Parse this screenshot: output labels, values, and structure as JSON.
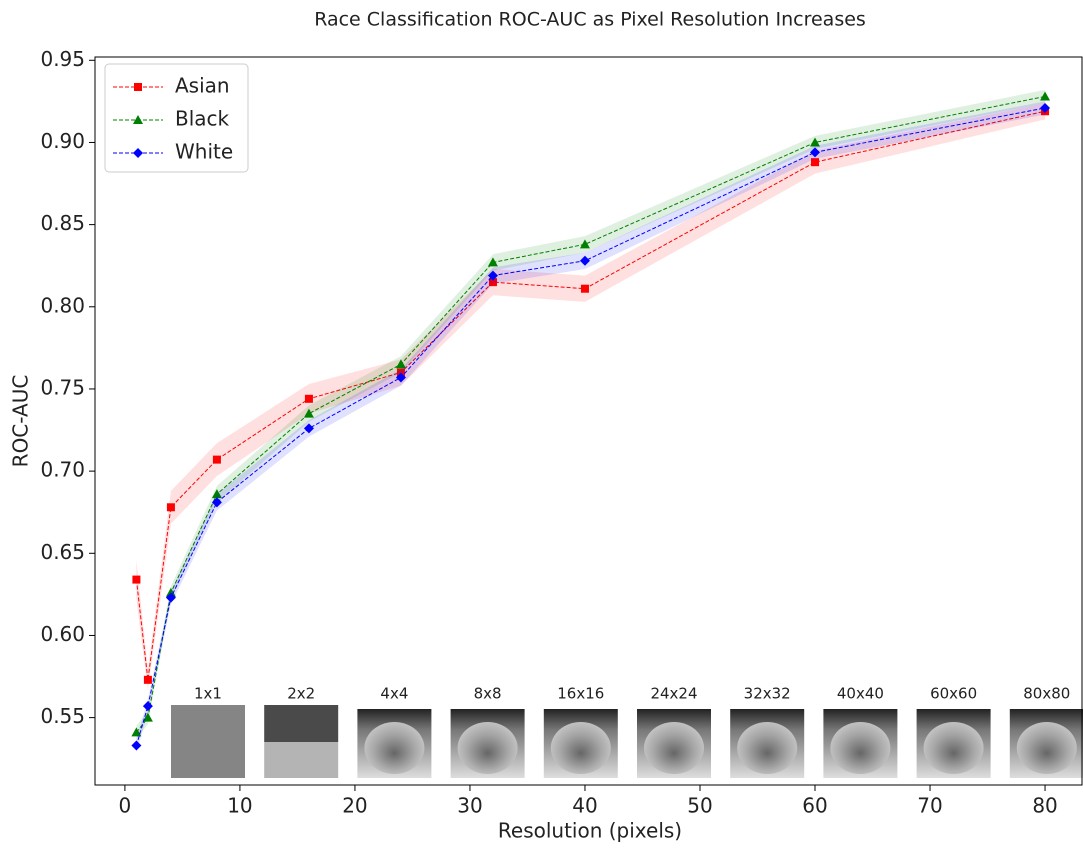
{
  "chart_data": {
    "type": "line",
    "title": "Race Classification ROC-AUC as Pixel Resolution Increases",
    "xlabel": "Resolution (pixels)",
    "ylabel": "ROC-AUC",
    "x": [
      1,
      2,
      4,
      8,
      16,
      24,
      32,
      40,
      60,
      80
    ],
    "series": [
      {
        "name": "Asian",
        "color": "#ff0000",
        "marker": "square",
        "values": [
          0.634,
          0.573,
          0.678,
          0.707,
          0.744,
          0.76,
          0.815,
          0.811,
          0.888,
          0.919
        ],
        "ci": [
          0.012,
          0.006,
          0.01,
          0.01,
          0.009,
          0.008,
          0.008,
          0.008,
          0.007,
          0.005
        ]
      },
      {
        "name": "Black",
        "color": "#008000",
        "marker": "triangle",
        "values": [
          0.541,
          0.55,
          0.626,
          0.686,
          0.735,
          0.765,
          0.827,
          0.838,
          0.9,
          0.928
        ],
        "ci": [
          0.004,
          0.004,
          0.004,
          0.005,
          0.005,
          0.005,
          0.005,
          0.005,
          0.004,
          0.004
        ]
      },
      {
        "name": "White",
        "color": "#0000ff",
        "marker": "diamond",
        "values": [
          0.533,
          0.557,
          0.623,
          0.681,
          0.726,
          0.757,
          0.819,
          0.828,
          0.894,
          0.921
        ],
        "ci": [
          0.004,
          0.004,
          0.004,
          0.005,
          0.005,
          0.005,
          0.005,
          0.005,
          0.004,
          0.004
        ]
      }
    ],
    "xlim": [
      -2.6,
      83.3
    ],
    "ylim": [
      0.509,
      0.952
    ],
    "xticks": [
      0,
      10,
      20,
      30,
      40,
      50,
      60,
      70,
      80
    ],
    "yticks": [
      {
        "value": 0.55,
        "label": "0.55"
      },
      {
        "value": 0.6,
        "label": "0.60"
      },
      {
        "value": 0.65,
        "label": "0.65"
      },
      {
        "value": 0.7,
        "label": "0.70"
      },
      {
        "value": 0.75,
        "label": "0.75"
      },
      {
        "value": 0.8,
        "label": "0.80"
      },
      {
        "value": 0.85,
        "label": "0.85"
      },
      {
        "value": 0.9,
        "label": "0.90"
      },
      {
        "value": 0.95,
        "label": "0.95"
      }
    ],
    "legend": "upper left",
    "grid": false,
    "thumbnails": [
      "1x1",
      "2x2",
      "4x4",
      "8x8",
      "16x16",
      "24x24",
      "32x32",
      "40x40",
      "60x60",
      "80x80"
    ]
  }
}
